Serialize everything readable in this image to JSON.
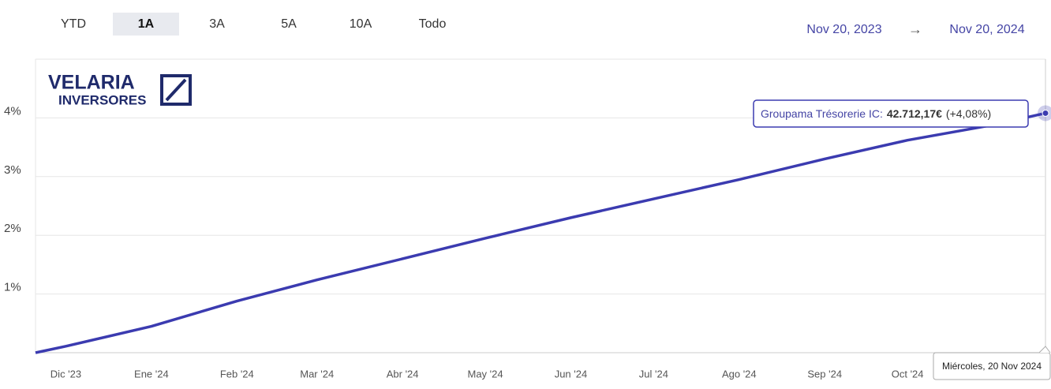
{
  "range_buttons": [
    "YTD",
    "1A",
    "3A",
    "5A",
    "10A",
    "Todo"
  ],
  "selected_range": "1A",
  "date_range": {
    "start": "Nov 20, 2023",
    "arrow": "→",
    "end": "Nov 20, 2024"
  },
  "logo": {
    "line1": "VELARIA",
    "line2": "INVERSORES"
  },
  "chart_data": {
    "type": "line",
    "x": [
      "2023-11-20",
      "2023-12-01",
      "2024-01-01",
      "2024-02-01",
      "2024-03-01",
      "2024-04-01",
      "2024-05-01",
      "2024-06-01",
      "2024-07-01",
      "2024-08-01",
      "2024-09-01",
      "2024-10-01",
      "2024-11-01",
      "2024-11-20"
    ],
    "series": [
      {
        "color": "#3b3bb0",
        "values": [
          0,
          0.11,
          0.45,
          0.88,
          1.24,
          1.6,
          1.95,
          2.3,
          2.62,
          2.95,
          3.3,
          3.62,
          3.88,
          4.08
        ]
      }
    ],
    "xlim": [
      "2023-11-20",
      "2024-11-20"
    ],
    "xticks": [
      {
        "value": "2023-12-01",
        "label": "Dic '23"
      },
      {
        "value": "2024-01-01",
        "label": "Ene '24"
      },
      {
        "value": "2024-02-01",
        "label": "Feb '24"
      },
      {
        "value": "2024-03-01",
        "label": "Mar '24"
      },
      {
        "value": "2024-04-01",
        "label": "Abr '24"
      },
      {
        "value": "2024-05-01",
        "label": "May '24"
      },
      {
        "value": "2024-06-01",
        "label": "Jun '24"
      },
      {
        "value": "2024-07-01",
        "label": "Jul '24"
      },
      {
        "value": "2024-08-01",
        "label": "Ago '24"
      },
      {
        "value": "2024-09-01",
        "label": "Sep '24"
      },
      {
        "value": "2024-10-01",
        "label": "Oct '24"
      }
    ],
    "ylim": [
      0,
      5
    ],
    "yticks": [
      {
        "value": 1,
        "label": "1%"
      },
      {
        "value": 2,
        "label": "2%"
      },
      {
        "value": 3,
        "label": "3%"
      },
      {
        "value": 4,
        "label": "4%"
      }
    ],
    "grid": true,
    "tooltip": {
      "label": "Groupama Trésorerie IC:",
      "value": "42.712,17€",
      "change": "(+4,08%)",
      "date": "Miércoles, 20 Nov 2024"
    }
  }
}
